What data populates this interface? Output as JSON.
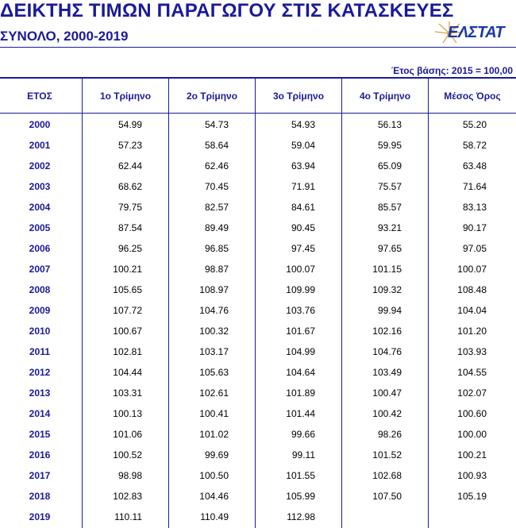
{
  "header": {
    "title": "ΔΕΙΚΤΗΣ ΤΙΜΩΝ ΠΑΡΑΓΩΓΟΥ ΣΤΙΣ ΚΑΤΑΣΚΕΥΕΣ",
    "subtitle": "ΣΥΝΟΛΟ, 2000-2019",
    "logo_text": "ΕΛΣΤΑΤ",
    "base_note": "Έτος βάσης: 2015 = 100,00"
  },
  "table": {
    "columns": [
      "ΕΤΟΣ",
      "1ο Τρίμηνο",
      "2ο Τρίμηνο",
      "3ο Τρίμηνο",
      "4ο Τρίμηνο",
      "Μέσος Όρος"
    ],
    "rows": [
      [
        "2000",
        "54.99",
        "54.73",
        "54.93",
        "56.13",
        "55.20"
      ],
      [
        "2001",
        "57.23",
        "58.64",
        "59.04",
        "59.95",
        "58.72"
      ],
      [
        "2002",
        "62.44",
        "62.46",
        "63.94",
        "65.09",
        "63.48"
      ],
      [
        "2003",
        "68.62",
        "70.45",
        "71.91",
        "75.57",
        "71.64"
      ],
      [
        "2004",
        "79.75",
        "82.57",
        "84.61",
        "85.57",
        "83.13"
      ],
      [
        "2005",
        "87.54",
        "89.49",
        "90.45",
        "93.21",
        "90.17"
      ],
      [
        "2006",
        "96.25",
        "96.85",
        "97.45",
        "97.65",
        "97.05"
      ],
      [
        "2007",
        "100.21",
        "98.87",
        "100.07",
        "101.15",
        "100.07"
      ],
      [
        "2008",
        "105.65",
        "108.97",
        "109.99",
        "109.32",
        "108.48"
      ],
      [
        "2009",
        "107.72",
        "104.76",
        "103.76",
        "99.94",
        "104.04"
      ],
      [
        "2010",
        "100.67",
        "100.32",
        "101.67",
        "102.16",
        "101.20"
      ],
      [
        "2011",
        "102.81",
        "103.17",
        "104.99",
        "104.76",
        "103.93"
      ],
      [
        "2012",
        "104.44",
        "105.63",
        "104.64",
        "103.49",
        "104.55"
      ],
      [
        "2013",
        "103.31",
        "102.61",
        "101.89",
        "100.47",
        "102.07"
      ],
      [
        "2014",
        "100.13",
        "100.41",
        "101.44",
        "100.42",
        "100.60"
      ],
      [
        "2015",
        "101.06",
        "101.02",
        "99.66",
        "98.26",
        "100.00"
      ],
      [
        "2016",
        "100.52",
        "99.69",
        "99.11",
        "101.52",
        "100.21"
      ],
      [
        "2017",
        "98.98",
        "100.50",
        "101.55",
        "102.68",
        "100.93"
      ],
      [
        "2018",
        "102.83",
        "104.46",
        "105.99",
        "107.50",
        "105.19"
      ],
      [
        "2019",
        "110.11",
        "110.49",
        "112.98",
        "",
        ""
      ]
    ]
  },
  "colors": {
    "accent": "#1a1a9a",
    "logo_blue": "#1a3aa8",
    "logo_gold": "#d8a640"
  }
}
